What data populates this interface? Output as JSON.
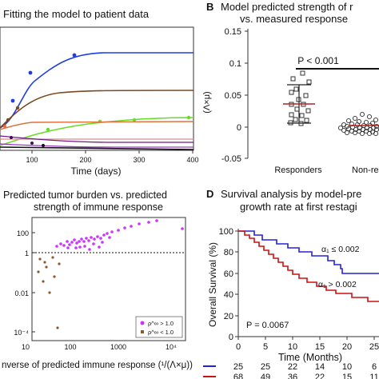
{
  "panelA": {
    "title": "Fitting the model to patient data",
    "xlabel": "Time (days)",
    "x_ticks": [
      "100",
      "200",
      "300",
      "400"
    ]
  },
  "panelB": {
    "letter": "B",
    "title_line1": "Model predicted strength of r",
    "title_line2": "vs. measured response",
    "ylabel": "(Λ×μ)",
    "y_ticks": [
      "0.15",
      "0.1",
      "0.05",
      "0",
      "-0.05"
    ],
    "pvalue": "P < 0.001",
    "categories": [
      "Responders",
      "Non-respon"
    ]
  },
  "panelC": {
    "title_line1": "Predicted tumor burden vs. predicted",
    "title_line2": "strength of immune response",
    "y_ticks": [
      "100",
      "1",
      "0.01",
      "10⁻⁴"
    ],
    "x_ticks": [
      "10",
      "100",
      "1000",
      "10⁴"
    ],
    "xlabel": "nverse of predicted immune response (¹/(Λ×μ))",
    "legend": [
      "ρ^∞ > 1.0",
      "ρ^∞ < 1.0"
    ],
    "colors": {
      "high": "#cc33ff",
      "low": "#8b5a2b"
    }
  },
  "panelD": {
    "letter": "D",
    "title_line1": "Survival analysis by model-pre",
    "title_line2": "growth rate at first restagi",
    "ylabel": "Overall Survival (%)",
    "y_ticks": [
      "100",
      "80",
      "60",
      "40",
      "20",
      "0"
    ],
    "x_ticks": [
      "0",
      "5",
      "10",
      "15",
      "20",
      "25"
    ],
    "xlabel": "Time (Months)",
    "label_blue": "α₁ ≤ 0.002",
    "label_red": "α₁ > 0.002",
    "pvalue": "P = 0.0067",
    "risk_blue": [
      "25",
      "25",
      "22",
      "14",
      "10",
      "6"
    ],
    "risk_red": [
      "68",
      "49",
      "36",
      "22",
      "15",
      "11"
    ],
    "colors": {
      "blue": "#2222dd",
      "red": "#cc1111"
    }
  }
}
